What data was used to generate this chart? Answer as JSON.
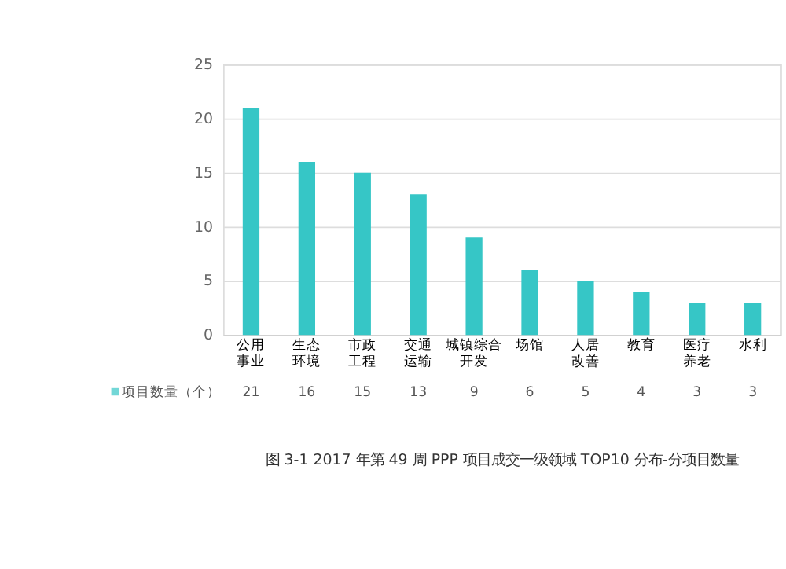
{
  "chart_data": {
    "type": "bar",
    "title": "图 3-1 2017 年第 49 周 PPP 项目成交一级领域 TOP10 分布-分项目数量",
    "categories": [
      "公用事业",
      "生态环境",
      "市政工程",
      "交通运输",
      "城镇综合开发",
      "场馆",
      "人居改善",
      "教育",
      "医疗养老",
      "水利"
    ],
    "series": [
      {
        "name": "项目数量（个）",
        "color": "#36c6c6",
        "values": [
          21,
          16,
          15,
          13,
          9,
          6,
          5,
          4,
          3,
          3
        ]
      }
    ],
    "ylim": [
      0,
      25
    ],
    "yticks": [
      0,
      5,
      10,
      15,
      20,
      25
    ],
    "grid": "y",
    "data_labels": true,
    "legend": "bottom"
  }
}
